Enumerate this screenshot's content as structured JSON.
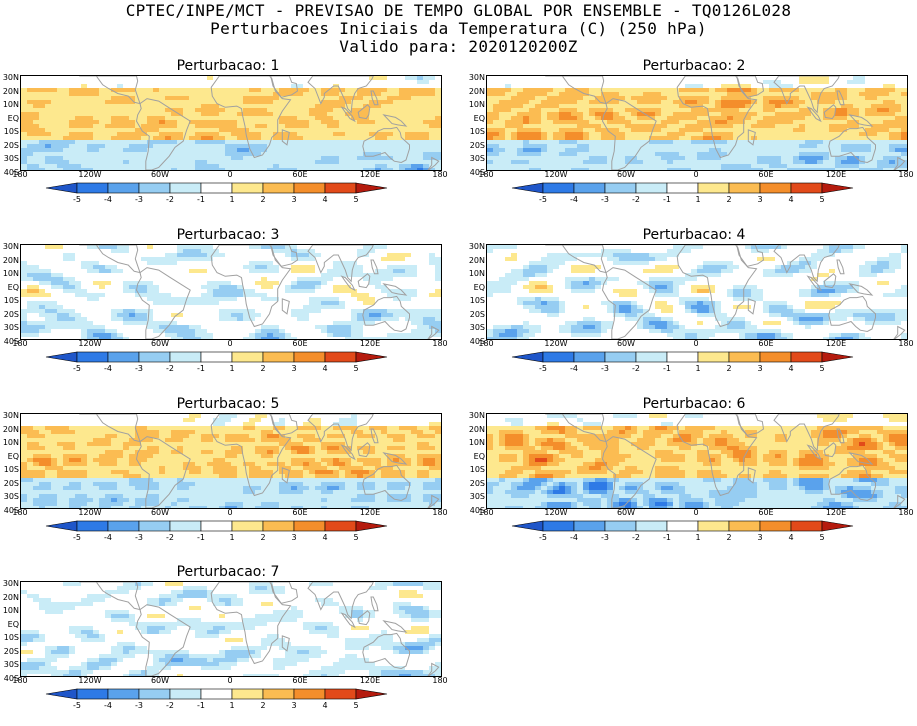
{
  "header": {
    "line1": "CPTEC/INPE/MCT - PREVISAO DE TEMPO GLOBAL POR ENSEMBLE - TQ0126L028",
    "line2": "Perturbacoes Iniciais da Temperatura (C) (250 hPa)",
    "line3": "Valido para: 2020120200Z"
  },
  "lat_labels": [
    "30N",
    "20N",
    "10N",
    "EQ",
    "10S",
    "20S",
    "30S",
    "40S"
  ],
  "lon_labels": [
    "180",
    "120W",
    "60W",
    "0",
    "60E",
    "120E",
    "180"
  ],
  "colorbar": {
    "labels": [
      "-5",
      "-4",
      "-3",
      "-2",
      "-1",
      "1",
      "2",
      "3",
      "4",
      "5"
    ],
    "colors": [
      "#1f56c9",
      "#2e7ae6",
      "#5aa2ec",
      "#96cdf2",
      "#c9ecf7",
      "#ffffff",
      "#fde88e",
      "#fbbc52",
      "#f48e2b",
      "#e24a1a",
      "#b51b0e"
    ]
  },
  "panels": [
    {
      "title": "Perturbacao: 1",
      "pattern": "warm"
    },
    {
      "title": "Perturbacao: 2",
      "pattern": "warm"
    },
    {
      "title": "Perturbacao: 3",
      "pattern": "cool"
    },
    {
      "title": "Perturbacao: 4",
      "pattern": "cool"
    },
    {
      "title": "Perturbacao: 5",
      "pattern": "warm"
    },
    {
      "title": "Perturbacao: 6",
      "pattern": "warm"
    },
    {
      "title": "Perturbacao: 7",
      "pattern": "cool"
    }
  ]
}
